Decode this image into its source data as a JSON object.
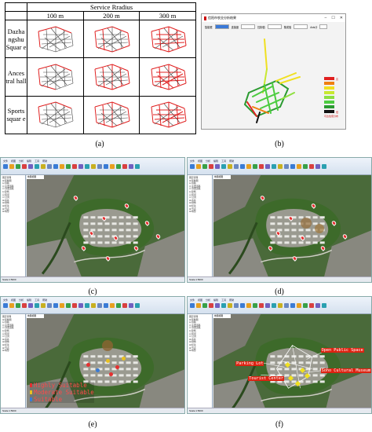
{
  "panel_a": {
    "header": "Service Rradius",
    "columns": [
      "100 m",
      "200 m",
      "300 m"
    ],
    "rows": [
      {
        "label": "Dazha ngshu Squar e"
      },
      {
        "label": "Ances tral hall"
      },
      {
        "label": "Sports squar e"
      }
    ],
    "caption": "(a)"
  },
  "panel_b": {
    "window_title": "信阳市农业分析结果",
    "fields": [
      "智能框",
      "连接度",
      "控制值",
      "集成值",
      "Axis计"
    ],
    "legend": [
      "高",
      "",
      "",
      "",
      "",
      "",
      "",
      "低",
      "可达性值分布"
    ],
    "legend_colors": [
      "#e02020",
      "#f08010",
      "#f0e020",
      "#c8e830",
      "#8ee040",
      "#4ccc40",
      "#2a9a30",
      "#111111"
    ],
    "caption": "(b)"
  },
  "gis_common": {
    "tabs": [
      "文件",
      "视图",
      "分析",
      "编辑",
      "工具",
      "帮助"
    ],
    "tree_items": [
      "图层管理",
      "⊞ 影像图",
      "⊟ 道路",
      "  ☑ 主要道路",
      "  ☑ 次要道路",
      "⊟ 建筑",
      "  ☑ 民居",
      "  ☑ 公共",
      "⊞ 水系",
      "⊞ 绿地",
      "⊞ 标注",
      "⊞ 节点",
      "⊞ 地形"
    ],
    "status": "Scale:1:5000",
    "map_tab": "地图视图"
  },
  "panel_c": {
    "caption": "(c)"
  },
  "panel_d": {
    "caption": "(d)"
  },
  "panel_e": {
    "caption": "(e)",
    "legend": [
      "Highly Suitable",
      "Moderate Suitable",
      "Suitable"
    ]
  },
  "panel_f": {
    "caption": "(f)",
    "labels": [
      "Parking Lot",
      "Tourist Center",
      "Open Public Space",
      "Soho Cultural Museum"
    ]
  }
}
